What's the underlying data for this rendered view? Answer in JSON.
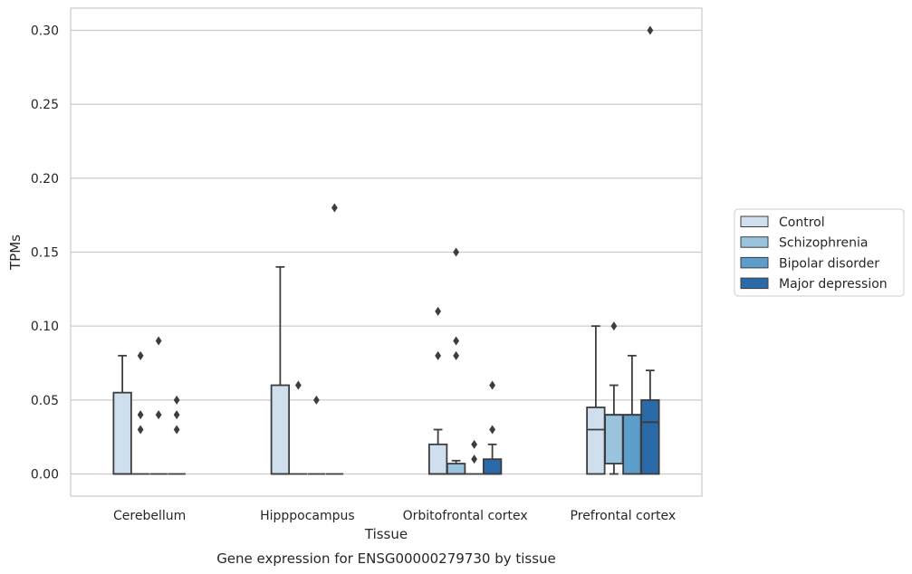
{
  "chart_data": {
    "type": "box",
    "title": "",
    "caption": "Gene expression for ENSG00000279730 by tissue",
    "xlabel": "Tissue",
    "ylabel": "TPMs",
    "ylim": [
      -0.015,
      0.315
    ],
    "yticks": [
      0.0,
      0.05,
      0.1,
      0.15,
      0.2,
      0.25,
      0.3
    ],
    "ytick_labels": [
      "0.00",
      "0.05",
      "0.10",
      "0.15",
      "0.20",
      "0.25",
      "0.30"
    ],
    "grid": "horizontal",
    "legend_position": "right",
    "categories": [
      "Cerebellum",
      "Hipppocampus",
      "Orbitofrontal cortex",
      "Prefrontal cortex"
    ],
    "series": [
      {
        "name": "Control",
        "color": "#d0dfee",
        "boxes": [
          {
            "q1": 0.0,
            "median": 0.0,
            "q3": 0.055,
            "whisker_low": 0.0,
            "whisker_high": 0.08,
            "outliers": []
          },
          {
            "q1": 0.0,
            "median": 0.0,
            "q3": 0.06,
            "whisker_low": 0.0,
            "whisker_high": 0.14,
            "outliers": []
          },
          {
            "q1": 0.0,
            "median": 0.0,
            "q3": 0.02,
            "whisker_low": 0.0,
            "whisker_high": 0.03,
            "outliers": [
              0.08,
              0.11
            ]
          },
          {
            "q1": 0.0,
            "median": 0.03,
            "q3": 0.045,
            "whisker_low": 0.0,
            "whisker_high": 0.1,
            "outliers": []
          }
        ]
      },
      {
        "name": "Schizophrenia",
        "color": "#9ac3de",
        "boxes": [
          {
            "q1": 0.0,
            "median": 0.0,
            "q3": 0.0,
            "whisker_low": 0.0,
            "whisker_high": 0.0,
            "outliers": [
              0.03,
              0.04,
              0.08
            ]
          },
          {
            "q1": 0.0,
            "median": 0.0,
            "q3": 0.0,
            "whisker_low": 0.0,
            "whisker_high": 0.0,
            "outliers": [
              0.06
            ]
          },
          {
            "q1": 0.0,
            "median": 0.0,
            "q3": 0.007,
            "whisker_low": 0.0,
            "whisker_high": 0.009,
            "outliers": [
              0.08,
              0.09,
              0.15
            ]
          },
          {
            "q1": 0.007,
            "median": 0.04,
            "q3": 0.04,
            "whisker_low": 0.0,
            "whisker_high": 0.06,
            "outliers": [
              0.1
            ]
          }
        ]
      },
      {
        "name": "Bipolar disorder",
        "color": "#5c9dcc",
        "boxes": [
          {
            "q1": 0.0,
            "median": 0.0,
            "q3": 0.0,
            "whisker_low": 0.0,
            "whisker_high": 0.0,
            "outliers": [
              0.04,
              0.09
            ]
          },
          {
            "q1": 0.0,
            "median": 0.0,
            "q3": 0.0,
            "whisker_low": 0.0,
            "whisker_high": 0.0,
            "outliers": [
              0.05
            ]
          },
          {
            "q1": 0.0,
            "median": 0.0,
            "q3": 0.0,
            "whisker_low": 0.0,
            "whisker_high": 0.0,
            "outliers": [
              0.01,
              0.02
            ]
          },
          {
            "q1": 0.0,
            "median": 0.04,
            "q3": 0.04,
            "whisker_low": 0.0,
            "whisker_high": 0.08,
            "outliers": []
          }
        ]
      },
      {
        "name": "Major depression",
        "color": "#2b6aa8",
        "boxes": [
          {
            "q1": 0.0,
            "median": 0.0,
            "q3": 0.0,
            "whisker_low": 0.0,
            "whisker_high": 0.0,
            "outliers": [
              0.03,
              0.04,
              0.05
            ]
          },
          {
            "q1": 0.0,
            "median": 0.0,
            "q3": 0.0,
            "whisker_low": 0.0,
            "whisker_high": 0.0,
            "outliers": [
              0.18
            ]
          },
          {
            "q1": 0.0,
            "median": 0.0,
            "q3": 0.01,
            "whisker_low": 0.0,
            "whisker_high": 0.02,
            "outliers": [
              0.03,
              0.06
            ]
          },
          {
            "q1": 0.0,
            "median": 0.035,
            "q3": 0.05,
            "whisker_low": 0.0,
            "whisker_high": 0.07,
            "outliers": [
              0.3
            ]
          }
        ]
      }
    ]
  }
}
